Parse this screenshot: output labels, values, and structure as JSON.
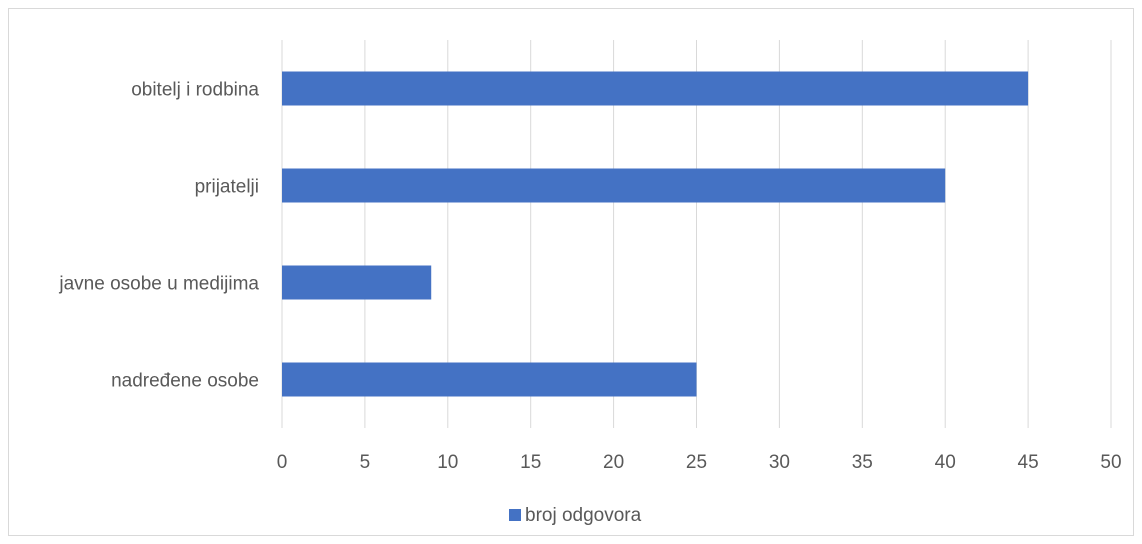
{
  "chart_data": {
    "type": "bar",
    "orientation": "horizontal",
    "categories": [
      "obitelj i rodbina",
      "prijatelji",
      "javne osobe u medijima",
      "nadređene osobe"
    ],
    "series": [
      {
        "name": "broj odgovora",
        "values": [
          45,
          40,
          9,
          25
        ],
        "color": "#4472c4"
      }
    ],
    "xlim": [
      0,
      50
    ],
    "x_ticks": [
      "0",
      "5",
      "10",
      "15",
      "20",
      "25",
      "30",
      "35",
      "40",
      "45",
      "50"
    ],
    "grid": true,
    "legend_position": "bottom"
  }
}
